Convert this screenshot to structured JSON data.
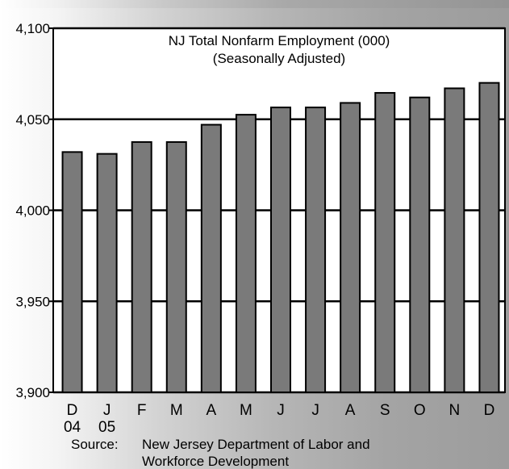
{
  "chart_data": {
    "type": "bar",
    "title": "NJ Total Nonfarm Employment (000)",
    "subtitle": "(Seasonally Adjusted)",
    "categories": [
      "D",
      "J",
      "F",
      "M",
      "A",
      "M",
      "J",
      "J",
      "A",
      "S",
      "O",
      "N",
      "D"
    ],
    "category_sublabels": [
      "04",
      "05",
      "",
      "",
      "",
      "",
      "",
      "",
      "",
      "",
      "",
      "",
      ""
    ],
    "values": [
      4032,
      4031,
      4037.5,
      4037.5,
      4047,
      4052.5,
      4056.5,
      4056.5,
      4059,
      4064.5,
      4062,
      4067,
      4070
    ],
    "ylim": [
      3900,
      4100
    ],
    "yticks": [
      3900,
      3950,
      4000,
      4050,
      4100
    ],
    "ytick_labels": [
      "3,900",
      "3,950",
      "4,000",
      "4,050",
      "4,100"
    ],
    "grid": true,
    "xlabel": "",
    "ylabel": "",
    "bar_color": "#7a7a7a",
    "plot_background": "#ffffff"
  },
  "source_label": "Source:",
  "source_lines": [
    "New Jersey Department of Labor and",
    "Workforce Development"
  ]
}
